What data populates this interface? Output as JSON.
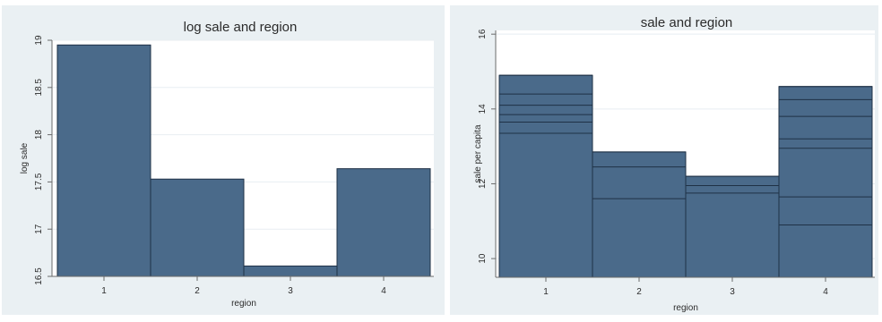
{
  "chart_data": [
    {
      "type": "bar",
      "title": "log sale and region",
      "xlabel": "region",
      "ylabel": "log sale",
      "categories": [
        "1",
        "2",
        "3",
        "4"
      ],
      "values": [
        18.95,
        17.53,
        16.61,
        17.64
      ],
      "ylim": [
        16.5,
        19.0
      ],
      "yticks": [
        16.5,
        17,
        17.5,
        18,
        18.5,
        19
      ],
      "ytick_labels": [
        "16.5",
        "17",
        "17.5",
        "18",
        "18.5",
        "19"
      ],
      "grid": true,
      "colors": {
        "bar": "#4a6a8a",
        "outline": "#1f3146",
        "background": "#eaf0f3"
      }
    },
    {
      "type": "bar",
      "title": "sale and region",
      "xlabel": "region",
      "ylabel": "sale per capita",
      "categories": [
        "1",
        "2",
        "3",
        "4"
      ],
      "values": [
        14.9,
        12.85,
        12.2,
        14.6
      ],
      "stack_lines": [
        [
          13.35,
          13.65,
          13.85,
          14.1,
          14.4,
          14.9
        ],
        [
          11.6,
          12.45,
          12.85
        ],
        [
          11.75,
          11.95,
          12.2
        ],
        [
          10.9,
          11.65,
          12.95,
          13.2,
          13.8,
          14.25,
          14.6
        ]
      ],
      "ylim": [
        9.5,
        16.1
      ],
      "yticks": [
        10,
        12,
        14,
        16
      ],
      "ytick_labels": [
        "10",
        "12",
        "14",
        "16"
      ],
      "grid": true,
      "colors": {
        "bar": "#4a6a8a",
        "outline": "#1f3146",
        "background": "#eaf0f3"
      }
    }
  ]
}
